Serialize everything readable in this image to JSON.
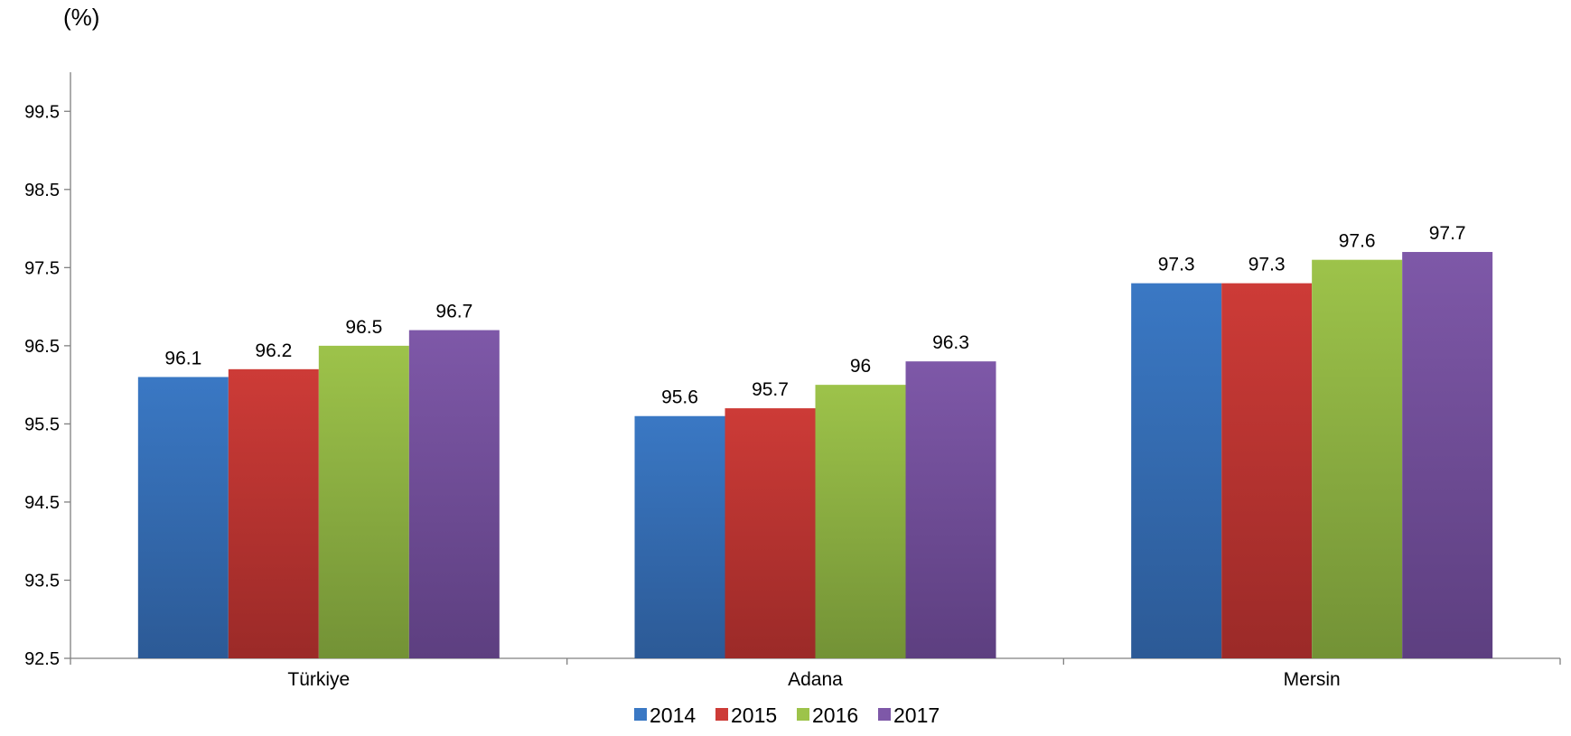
{
  "chart_data": {
    "type": "bar",
    "title": "",
    "unit_label": "(%)",
    "xlabel": "",
    "ylabel": "",
    "categories": [
      "Türkiye",
      "Adana",
      "Mersin"
    ],
    "series": [
      {
        "name": "2014",
        "color": "#3a78c4",
        "color_dark": "#2c5a96",
        "values": [
          96.1,
          95.6,
          97.3
        ],
        "labels": [
          "96.1",
          "95.6",
          "97.3"
        ]
      },
      {
        "name": "2015",
        "color": "#cd3b37",
        "color_dark": "#9b2a28",
        "values": [
          96.2,
          95.7,
          97.3
        ],
        "labels": [
          "96.2",
          "95.7",
          "97.3"
        ]
      },
      {
        "name": "2016",
        "color": "#9dc34a",
        "color_dark": "#739236",
        "values": [
          96.5,
          96.0,
          97.6
        ],
        "labels": [
          "96.5",
          "96",
          "97.6"
        ]
      },
      {
        "name": "2017",
        "color": "#7e58a8",
        "color_dark": "#5d3f80",
        "values": [
          96.7,
          96.3,
          97.7
        ],
        "labels": [
          "96.7",
          "96.3",
          "97.7"
        ]
      }
    ],
    "ylim": [
      92.5,
      100.0
    ],
    "yticks": [
      92.5,
      93.5,
      94.5,
      95.5,
      96.5,
      97.5,
      98.5,
      99.5
    ],
    "ytick_labels": [
      "92.5",
      "93.5",
      "94.5",
      "95.5",
      "96.5",
      "97.5",
      "98.5",
      "99.5"
    ],
    "grid": false,
    "legend_position": "bottom"
  }
}
